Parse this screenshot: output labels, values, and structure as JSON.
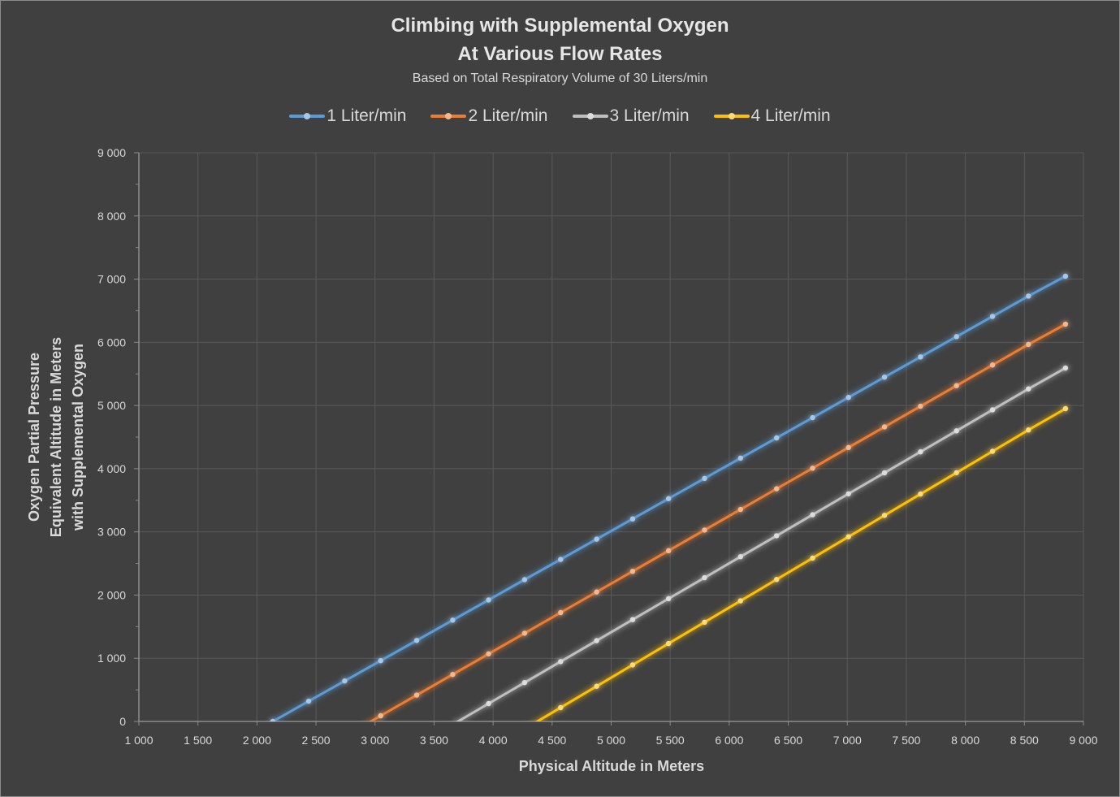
{
  "chart_data": {
    "type": "line",
    "title": "Climbing with Supplemental Oxygen",
    "title_line2": "At Various Flow Rates",
    "subtitle": "Based on Total Respiratory Volume of  30 Liters/min",
    "xlabel": "Physical Altitude in Meters",
    "ylabel_lines": [
      "Oxygen Partial Pressure",
      "Equivalent Altitude  in Meters",
      "with Supplemental Oxygen"
    ],
    "xlim": [
      1000,
      9000
    ],
    "ylim": [
      0,
      9000
    ],
    "x_ticks": [
      1000,
      1500,
      2000,
      2500,
      3000,
      3500,
      4000,
      4500,
      5000,
      5500,
      6000,
      6500,
      7000,
      7500,
      8000,
      8500,
      9000
    ],
    "x_tick_labels": [
      "1 000",
      "1 500",
      "2 000",
      "2 500",
      "3 000",
      "3 500",
      "4 000",
      "4 500",
      "5 000",
      "5 500",
      "6 000",
      "6 500",
      "7 000",
      "7 500",
      "8 000",
      "8 500",
      "9 000"
    ],
    "y_ticks": [
      0,
      1000,
      2000,
      3000,
      4000,
      5000,
      6000,
      7000,
      8000,
      9000
    ],
    "y_tick_labels": [
      "0",
      "1 000",
      "2 000",
      "3 000",
      "4 000",
      "5 000",
      "6 000",
      "7 000",
      "8 000",
      "9 000"
    ],
    "y_minor_step": 500,
    "grid": true,
    "legend_position": "top",
    "x": [
      2134,
      2438,
      2743,
      3048,
      3353,
      3658,
      3962,
      4267,
      4572,
      4877,
      5182,
      5486,
      5791,
      6096,
      6401,
      6706,
      7010,
      7315,
      7620,
      7925,
      8230,
      8534,
      8848
    ],
    "series": [
      {
        "name": "1 Liter/min",
        "color": "#5b9bd5",
        "values": [
          0,
          321,
          641,
          962,
          1282,
          1603,
          1923,
          2244,
          2564,
          2885,
          3205,
          3526,
          3846,
          4167,
          4487,
          4808,
          5128,
          5449,
          5769,
          6090,
          6410,
          6731,
          7046
        ]
      },
      {
        "name": "2 Liter/min",
        "color": "#ed7d31",
        "values": [
          null,
          null,
          -237,
          90,
          417,
          743,
          1070,
          1396,
          1723,
          2049,
          2376,
          2702,
          3029,
          3355,
          3682,
          4008,
          4335,
          4661,
          4988,
          5314,
          5641,
          5967,
          6287
        ]
      },
      {
        "name": "3 Liter/min",
        "color": "#bfbfbf",
        "values": [
          null,
          null,
          null,
          null,
          null,
          -49,
          283,
          615,
          947,
          1279,
          1611,
          1943,
          2275,
          2607,
          2939,
          3271,
          3603,
          3935,
          4267,
          4599,
          4931,
          5263,
          5593
        ]
      },
      {
        "name": "4 Liter/min",
        "color": "#ffc000",
        "values": [
          null,
          null,
          null,
          null,
          null,
          null,
          null,
          -119,
          219,
          557,
          895,
          1233,
          1571,
          1909,
          2247,
          2585,
          2923,
          3261,
          3599,
          3937,
          4275,
          4613,
          4950
        ]
      }
    ]
  }
}
